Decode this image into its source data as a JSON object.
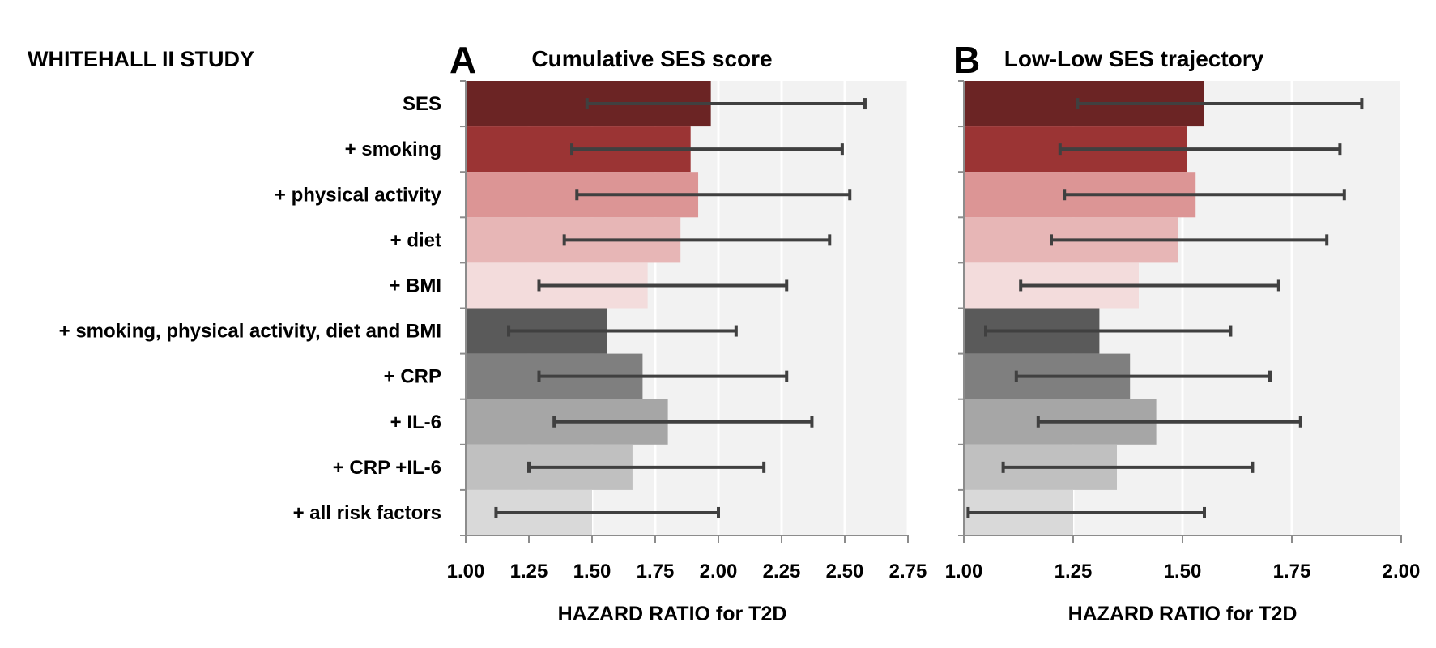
{
  "study_title": "WHITEHALL II STUDY",
  "chart_data": [
    {
      "type": "bar",
      "orientation": "horizontal",
      "panel_letter": "A",
      "title": "Cumulative SES score",
      "xlabel": "HAZARD RATIO for T2D",
      "xlim": [
        1.0,
        2.75
      ],
      "x_ticks": [
        "1.00",
        "1.25",
        "1.50",
        "1.75",
        "2.00",
        "2.25",
        "2.50",
        "2.75"
      ],
      "baseline": 1.0,
      "categories": [
        "SES",
        "+ smoking",
        "+ physical activity",
        "+ diet",
        "+ BMI",
        "+ smoking, physical activity, diet and BMI",
        "+ CRP",
        "+ IL-6",
        "+ CRP +IL-6",
        "+ all risk factors"
      ],
      "values": [
        1.97,
        1.89,
        1.92,
        1.85,
        1.72,
        1.56,
        1.7,
        1.8,
        1.66,
        1.5
      ],
      "ci_lower": [
        1.48,
        1.42,
        1.44,
        1.39,
        1.29,
        1.17,
        1.29,
        1.35,
        1.25,
        1.12
      ],
      "ci_upper": [
        2.58,
        2.49,
        2.52,
        2.44,
        2.27,
        2.07,
        2.27,
        2.37,
        2.18,
        2.0
      ],
      "grid": true
    },
    {
      "type": "bar",
      "orientation": "horizontal",
      "panel_letter": "B",
      "title": "Low-Low SES trajectory",
      "xlabel": "HAZARD RATIO for T2D",
      "xlim": [
        1.0,
        2.0
      ],
      "x_ticks": [
        "1.00",
        "1.25",
        "1.50",
        "1.75",
        "2.00"
      ],
      "baseline": 1.0,
      "categories": [
        "SES",
        "+ smoking",
        "+ physical activity",
        "+ diet",
        "+ BMI",
        "+ smoking, physical activity, diet and BMI",
        "+ CRP",
        "+ IL-6",
        "+ CRP +IL-6",
        "+ all risk factors"
      ],
      "values": [
        1.55,
        1.51,
        1.53,
        1.49,
        1.4,
        1.31,
        1.38,
        1.44,
        1.35,
        1.25
      ],
      "ci_lower": [
        1.26,
        1.22,
        1.23,
        1.2,
        1.13,
        1.05,
        1.12,
        1.17,
        1.09,
        1.01
      ],
      "ci_upper": [
        1.91,
        1.86,
        1.87,
        1.83,
        1.72,
        1.61,
        1.7,
        1.77,
        1.66,
        1.55
      ],
      "grid": true
    }
  ],
  "colors": {
    "bars": [
      "#6b2424",
      "#9b3434",
      "#dc9595",
      "#e7b6b6",
      "#f3dcdc",
      "#5a5a5a",
      "#7f7f7f",
      "#a6a6a6",
      "#c0c0c0",
      "#d9d9d9"
    ],
    "plot_background": "#f2f2f2",
    "gridline": "#ffffff",
    "error_bar": "#404040",
    "axis": "#8c8c8c",
    "text": "#111111"
  }
}
